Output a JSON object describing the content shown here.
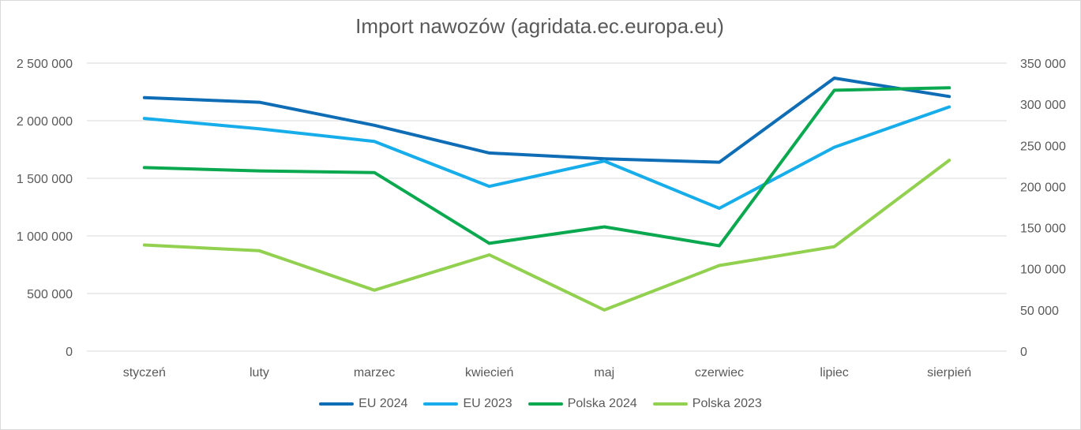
{
  "chart_data": {
    "type": "line",
    "title": "Import nawozów (agridata.ec.europa.eu)",
    "categories": [
      "styczeń",
      "luty",
      "marzec",
      "kwiecień",
      "maj",
      "czerwiec",
      "lipiec",
      "sierpień"
    ],
    "y_left": {
      "ylim": [
        0,
        2500000
      ],
      "ticks": [
        0,
        500000,
        1000000,
        1500000,
        2000000,
        2500000
      ],
      "tick_labels": [
        "0",
        "500 000",
        "1 000 000",
        "1 500 000",
        "2 000 000",
        "2 500 000"
      ]
    },
    "y_right": {
      "ylim": [
        0,
        350000
      ],
      "ticks": [
        0,
        50000,
        100000,
        150000,
        200000,
        250000,
        300000,
        350000
      ],
      "tick_labels": [
        "0",
        "50 000",
        "100 000",
        "150 000",
        "200 000",
        "250 000",
        "300 000",
        "350 000"
      ]
    },
    "grid": true,
    "legend_position": "bottom",
    "series": [
      {
        "name": "EU 2024",
        "axis": "left",
        "color": "#0e6db5",
        "values": [
          2200000,
          2160000,
          1960000,
          1720000,
          1670000,
          1640000,
          2370000,
          2210000
        ]
      },
      {
        "name": "EU 2023",
        "axis": "left",
        "color": "#16adea",
        "values": [
          2020000,
          1930000,
          1820000,
          1430000,
          1650000,
          1240000,
          1770000,
          2120000
        ]
      },
      {
        "name": "Polska 2024",
        "axis": "right",
        "color": "#0aa84f",
        "values": [
          223000,
          219000,
          217000,
          131000,
          151000,
          128000,
          317000,
          320000
        ]
      },
      {
        "name": "Polska 2023",
        "axis": "right",
        "color": "#92d050",
        "values": [
          129000,
          122000,
          74000,
          117000,
          50000,
          104000,
          127000,
          232000
        ]
      }
    ]
  }
}
